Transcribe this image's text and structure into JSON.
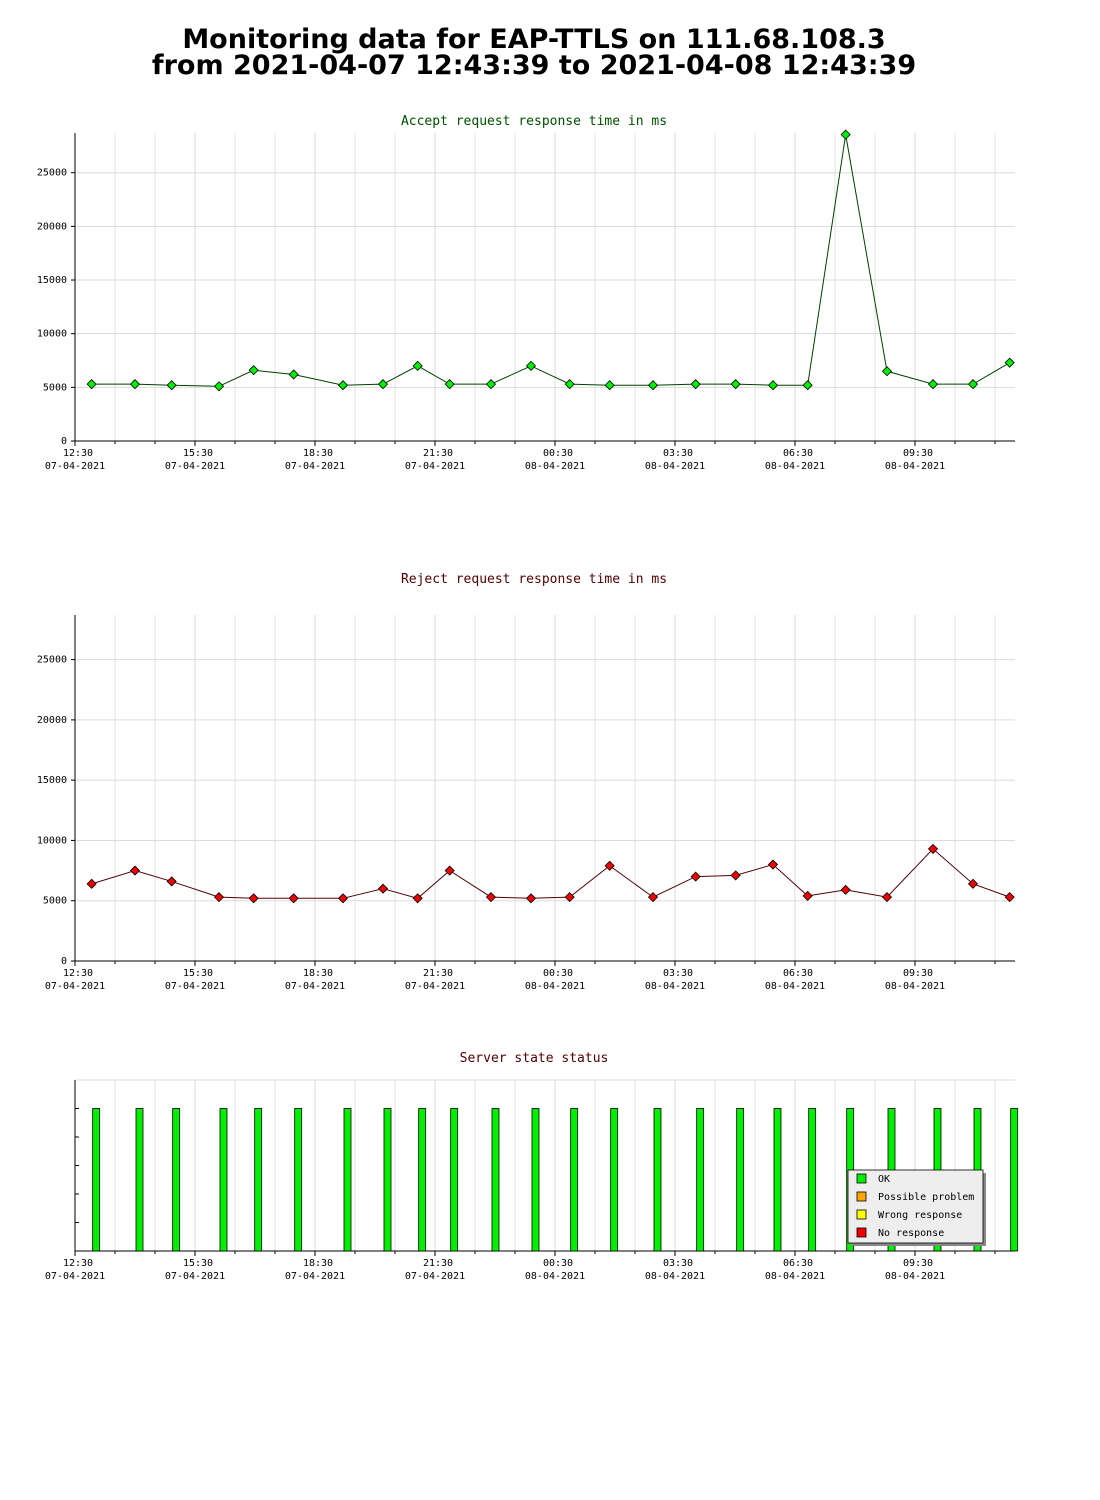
{
  "header": {
    "title": [
      "Monitoring data for EAP-TTLS on 111.68.108.3",
      "from 2021-04-07 12:43:39 to 2021-04-08 12:43:39"
    ]
  },
  "chart_data": [
    {
      "type": "line",
      "title": "Accept request response time in ms",
      "title_color": "#005000",
      "color": "#00ee00",
      "line_color": "#004000",
      "x": [
        "2021-04-07 12:55",
        "2021-04-07 14:00",
        "2021-04-07 14:55",
        "2021-04-07 16:06",
        "2021-04-07 16:58",
        "2021-04-07 17:58",
        "2021-04-07 19:12",
        "2021-04-07 20:12",
        "2021-04-07 21:04",
        "2021-04-07 21:52",
        "2021-04-07 22:54",
        "2021-04-07 23:54",
        "2021-04-08 00:52",
        "2021-04-08 01:52",
        "2021-04-08 02:57",
        "2021-04-08 04:01",
        "2021-04-08 05:01",
        "2021-04-08 05:57",
        "2021-04-08 06:49",
        "2021-04-08 07:46",
        "2021-04-08 08:48",
        "2021-04-08 09:57",
        "2021-04-08 10:57",
        "2021-04-08 11:52"
      ],
      "values": [
        5300,
        5300,
        5200,
        5100,
        6600,
        6200,
        5200,
        5300,
        7000,
        5300,
        5300,
        7000,
        5300,
        5200,
        5200,
        5300,
        5300,
        5200,
        5200,
        28550,
        6500,
        5300,
        5300,
        7300
      ],
      "xlim": [
        "2021-04-07 12:30",
        "2021-04-08 12:00"
      ],
      "xticks": [
        {
          "value": "2021-04-07 12:30",
          "label": [
            "12:30",
            "07-04-2021"
          ]
        },
        {
          "value": "2021-04-07 15:30",
          "label": [
            "15:30",
            "07-04-2021"
          ]
        },
        {
          "value": "2021-04-07 18:30",
          "label": [
            "18:30",
            "07-04-2021"
          ]
        },
        {
          "value": "2021-04-07 21:30",
          "label": [
            "21:30",
            "07-04-2021"
          ]
        },
        {
          "value": "2021-04-08 00:30",
          "label": [
            "00:30",
            "08-04-2021"
          ]
        },
        {
          "value": "2021-04-08 03:30",
          "label": [
            "03:30",
            "08-04-2021"
          ]
        },
        {
          "value": "2021-04-08 06:30",
          "label": [
            "06:30",
            "08-04-2021"
          ]
        },
        {
          "value": "2021-04-08 09:30",
          "label": [
            "09:30",
            "08-04-2021"
          ]
        }
      ],
      "ylim": [
        0,
        28700
      ],
      "yticks": [
        0,
        5000,
        10000,
        15000,
        20000,
        25000
      ],
      "grid": true
    },
    {
      "type": "line",
      "title": "Reject request response time in ms",
      "title_color": "#500000",
      "color": "#ee0000",
      "line_color": "#500000",
      "x": [
        "2021-04-07 12:55",
        "2021-04-07 14:00",
        "2021-04-07 14:55",
        "2021-04-07 16:06",
        "2021-04-07 16:58",
        "2021-04-07 17:58",
        "2021-04-07 19:12",
        "2021-04-07 20:12",
        "2021-04-07 21:04",
        "2021-04-07 21:52",
        "2021-04-07 22:54",
        "2021-04-07 23:54",
        "2021-04-08 00:52",
        "2021-04-08 01:52",
        "2021-04-08 02:57",
        "2021-04-08 04:01",
        "2021-04-08 05:01",
        "2021-04-08 05:57",
        "2021-04-08 06:49",
        "2021-04-08 07:46",
        "2021-04-08 08:48",
        "2021-04-08 09:57",
        "2021-04-08 10:57",
        "2021-04-08 11:52"
      ],
      "values": [
        6400,
        7500,
        6600,
        5300,
        5200,
        5200,
        5200,
        6000,
        5200,
        7500,
        5300,
        5200,
        5300,
        7900,
        5300,
        7000,
        7100,
        8000,
        5400,
        5900,
        5300,
        9300,
        6400,
        5300
      ],
      "xlim": [
        "2021-04-07 12:30",
        "2021-04-08 12:00"
      ],
      "xticks": [
        {
          "value": "2021-04-07 12:30",
          "label": [
            "12:30",
            "07-04-2021"
          ]
        },
        {
          "value": "2021-04-07 15:30",
          "label": [
            "15:30",
            "07-04-2021"
          ]
        },
        {
          "value": "2021-04-07 18:30",
          "label": [
            "18:30",
            "07-04-2021"
          ]
        },
        {
          "value": "2021-04-07 21:30",
          "label": [
            "21:30",
            "07-04-2021"
          ]
        },
        {
          "value": "2021-04-08 00:30",
          "label": [
            "00:30",
            "08-04-2021"
          ]
        },
        {
          "value": "2021-04-08 03:30",
          "label": [
            "03:30",
            "08-04-2021"
          ]
        },
        {
          "value": "2021-04-08 06:30",
          "label": [
            "06:30",
            "08-04-2021"
          ]
        },
        {
          "value": "2021-04-08 09:30",
          "label": [
            "09:30",
            "08-04-2021"
          ]
        }
      ],
      "ylim": [
        0,
        28700
      ],
      "yticks": [
        0,
        5000,
        10000,
        15000,
        20000,
        25000
      ],
      "grid": true
    },
    {
      "type": "status",
      "title": "Server state status",
      "title_color": "#500000",
      "x": [
        "2021-04-07 12:55",
        "2021-04-07 14:00",
        "2021-04-07 14:55",
        "2021-04-07 16:06",
        "2021-04-07 16:58",
        "2021-04-07 17:58",
        "2021-04-07 19:12",
        "2021-04-07 20:12",
        "2021-04-07 21:04",
        "2021-04-07 21:52",
        "2021-04-07 22:54",
        "2021-04-07 23:54",
        "2021-04-08 00:52",
        "2021-04-08 01:52",
        "2021-04-08 02:57",
        "2021-04-08 04:01",
        "2021-04-08 05:01",
        "2021-04-08 05:57",
        "2021-04-08 06:49",
        "2021-04-08 07:46",
        "2021-04-08 08:48",
        "2021-04-08 09:57",
        "2021-04-08 10:57",
        "2021-04-08 11:52"
      ],
      "status": [
        "OK",
        "OK",
        "OK",
        "OK",
        "OK",
        "OK",
        "OK",
        "OK",
        "OK",
        "OK",
        "OK",
        "OK",
        "OK",
        "OK",
        "OK",
        "OK",
        "OK",
        "OK",
        "OK",
        "OK",
        "OK",
        "OK",
        "OK",
        "OK"
      ],
      "legend": [
        {
          "name": "OK",
          "color": "#00ee00"
        },
        {
          "name": "Possible problem",
          "color": "#ffa500"
        },
        {
          "name": "Wrong response",
          "color": "#ffff00"
        },
        {
          "name": "No response",
          "color": "#ee0000"
        }
      ],
      "legend_position": "lower right",
      "xlim": [
        "2021-04-07 12:30",
        "2021-04-08 12:00"
      ],
      "xticks": [
        {
          "value": "2021-04-07 12:30",
          "label": [
            "12:30",
            "07-04-2021"
          ]
        },
        {
          "value": "2021-04-07 15:30",
          "label": [
            "15:30",
            "07-04-2021"
          ]
        },
        {
          "value": "2021-04-07 18:30",
          "label": [
            "18:30",
            "07-04-2021"
          ]
        },
        {
          "value": "2021-04-07 21:30",
          "label": [
            "21:30",
            "07-04-2021"
          ]
        },
        {
          "value": "2021-04-08 00:30",
          "label": [
            "00:30",
            "08-04-2021"
          ]
        },
        {
          "value": "2021-04-08 03:30",
          "label": [
            "03:30",
            "08-04-2021"
          ]
        },
        {
          "value": "2021-04-08 06:30",
          "label": [
            "06:30",
            "08-04-2021"
          ]
        },
        {
          "value": "2021-04-08 09:30",
          "label": [
            "09:30",
            "08-04-2021"
          ]
        }
      ]
    }
  ]
}
